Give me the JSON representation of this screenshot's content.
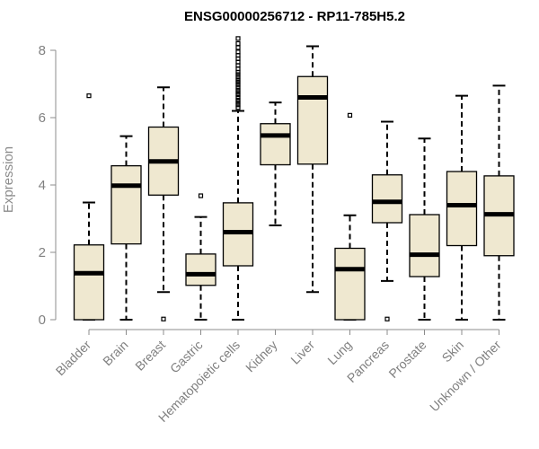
{
  "chart_data": {
    "type": "boxplot",
    "title": "ENSG00000256712 - RP11-785H5.2",
    "xlabel": "",
    "ylabel": "Expression",
    "ylim": [
      0,
      8.4
    ],
    "yticks": [
      0,
      2,
      4,
      6,
      8
    ],
    "categories": [
      "Bladder",
      "Brain",
      "Breast",
      "Gastric",
      "Hematopoietic cells",
      "Kidney",
      "Liver",
      "Lung",
      "Pancreas",
      "Prostate",
      "Skin",
      "Unknown / Other"
    ],
    "boxes": [
      {
        "name": "Bladder",
        "min": 0,
        "q1": 0,
        "median": 1.38,
        "q3": 2.22,
        "max": 3.48,
        "outliers": [
          6.65
        ]
      },
      {
        "name": "Brain",
        "min": 0,
        "q1": 2.25,
        "median": 3.98,
        "q3": 4.57,
        "max": 5.45,
        "outliers": []
      },
      {
        "name": "Breast",
        "min": 0.82,
        "q1": 3.7,
        "median": 4.7,
        "q3": 5.72,
        "max": 6.9,
        "outliers": [
          0.02
        ]
      },
      {
        "name": "Gastric",
        "min": 0,
        "q1": 1.02,
        "median": 1.35,
        "q3": 1.95,
        "max": 3.05,
        "outliers": [
          3.68
        ]
      },
      {
        "name": "Hematopoietic cells",
        "min": 0,
        "q1": 1.6,
        "median": 2.6,
        "q3": 3.47,
        "max": 6.2,
        "outliers": [
          6.3,
          6.38,
          6.45,
          6.52,
          6.6,
          6.68,
          6.75,
          6.82,
          6.9,
          6.98,
          7.05,
          7.12,
          7.2,
          7.28,
          7.35,
          7.45,
          7.55,
          7.65,
          7.75,
          7.85,
          7.95,
          8.08,
          8.2,
          8.35
        ]
      },
      {
        "name": "Kidney",
        "min": 2.8,
        "q1": 4.6,
        "median": 5.47,
        "q3": 5.82,
        "max": 6.45,
        "outliers": []
      },
      {
        "name": "Liver",
        "min": 0.82,
        "q1": 4.62,
        "median": 6.6,
        "q3": 7.22,
        "max": 8.12,
        "outliers": []
      },
      {
        "name": "Lung",
        "min": 0,
        "q1": 0,
        "median": 1.5,
        "q3": 2.12,
        "max": 3.1,
        "outliers": [
          6.07
        ]
      },
      {
        "name": "Pancreas",
        "min": 1.15,
        "q1": 2.88,
        "median": 3.5,
        "q3": 4.3,
        "max": 5.88,
        "outliers": [
          0.02
        ]
      },
      {
        "name": "Prostate",
        "min": 0,
        "q1": 1.28,
        "median": 1.93,
        "q3": 3.12,
        "max": 5.38,
        "outliers": []
      },
      {
        "name": "Skin",
        "min": 0,
        "q1": 2.2,
        "median": 3.4,
        "q3": 4.4,
        "max": 6.65,
        "outliers": []
      },
      {
        "name": "Unknown / Other",
        "min": 0,
        "q1": 1.9,
        "median": 3.13,
        "q3": 4.27,
        "max": 6.95,
        "outliers": []
      }
    ],
    "colors": {
      "box_fill": "#efe8d0",
      "box_stroke": "#000000",
      "axis": "#8c8c8c",
      "tick_text": "#808080"
    }
  }
}
